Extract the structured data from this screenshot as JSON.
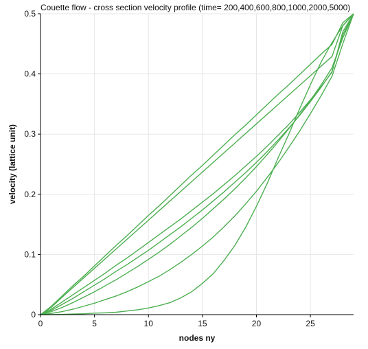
{
  "chart_data": {
    "type": "line",
    "title": "Couette flow - cross section velocity profile (time= 200,400,600,800,1000,2000,5000)",
    "xlabel": "nodes ny",
    "ylabel": "velocity (lattice unit)",
    "xlim": [
      0,
      29
    ],
    "ylim": [
      0,
      0.5
    ],
    "xticks": [
      0,
      5,
      10,
      15,
      20,
      25
    ],
    "yticks": [
      0,
      0.1,
      0.2,
      0.3,
      0.4,
      0.5
    ],
    "grid": true,
    "line_color": "#4caf50",
    "x": [
      0,
      1,
      2,
      3,
      4,
      5,
      6,
      7,
      8,
      9,
      10,
      11,
      12,
      13,
      14,
      15,
      16,
      17,
      18,
      19,
      20,
      21,
      22,
      23,
      24,
      25,
      26,
      27,
      28,
      29
    ],
    "series": [
      {
        "values": [
          0,
          0,
          0.0005,
          0.001,
          0.0015,
          0.0025,
          0.003,
          0.004,
          0.006,
          0.008,
          0.011,
          0.015,
          0.02,
          0.028,
          0.038,
          0.052,
          0.068,
          0.09,
          0.115,
          0.145,
          0.18,
          0.218,
          0.26,
          0.3,
          0.342,
          0.382,
          0.42,
          0.452,
          0.48,
          0.5
        ]
      },
      {
        "values": [
          0,
          0.002,
          0.005,
          0.009,
          0.014,
          0.019,
          0.025,
          0.031,
          0.038,
          0.046,
          0.055,
          0.064,
          0.075,
          0.087,
          0.1,
          0.114,
          0.129,
          0.146,
          0.164,
          0.184,
          0.205,
          0.228,
          0.252,
          0.278,
          0.305,
          0.334,
          0.364,
          0.396,
          0.45,
          0.5
        ]
      },
      {
        "values": [
          0,
          0.005,
          0.012,
          0.02,
          0.029,
          0.038,
          0.048,
          0.058,
          0.069,
          0.08,
          0.092,
          0.104,
          0.117,
          0.131,
          0.145,
          0.16,
          0.176,
          0.192,
          0.209,
          0.227,
          0.246,
          0.266,
          0.287,
          0.309,
          0.332,
          0.356,
          0.382,
          0.41,
          0.46,
          0.5
        ]
      },
      {
        "values": [
          0,
          0.007,
          0.017,
          0.027,
          0.038,
          0.049,
          0.06,
          0.072,
          0.083,
          0.095,
          0.107,
          0.12,
          0.133,
          0.146,
          0.16,
          0.174,
          0.189,
          0.204,
          0.22,
          0.236,
          0.253,
          0.271,
          0.29,
          0.31,
          0.331,
          0.354,
          0.378,
          0.404,
          0.465,
          0.5
        ]
      },
      {
        "values": [
          0,
          0.009,
          0.021,
          0.033,
          0.045,
          0.057,
          0.069,
          0.082,
          0.094,
          0.107,
          0.12,
          0.133,
          0.146,
          0.159,
          0.173,
          0.187,
          0.201,
          0.216,
          0.231,
          0.247,
          0.263,
          0.28,
          0.298,
          0.316,
          0.336,
          0.357,
          0.379,
          0.403,
          0.47,
          0.5
        ]
      },
      {
        "values": [
          0,
          0.012,
          0.029,
          0.045,
          0.061,
          0.077,
          0.093,
          0.109,
          0.125,
          0.141,
          0.157,
          0.173,
          0.189,
          0.205,
          0.221,
          0.237,
          0.253,
          0.269,
          0.285,
          0.301,
          0.317,
          0.333,
          0.349,
          0.365,
          0.381,
          0.397,
          0.413,
          0.429,
          0.48,
          0.5
        ]
      },
      {
        "values": [
          0,
          0.014,
          0.031,
          0.048,
          0.064,
          0.081,
          0.098,
          0.115,
          0.131,
          0.148,
          0.165,
          0.181,
          0.198,
          0.215,
          0.232,
          0.248,
          0.265,
          0.282,
          0.299,
          0.315,
          0.332,
          0.349,
          0.366,
          0.382,
          0.399,
          0.416,
          0.433,
          0.449,
          0.485,
          0.5
        ]
      }
    ]
  }
}
